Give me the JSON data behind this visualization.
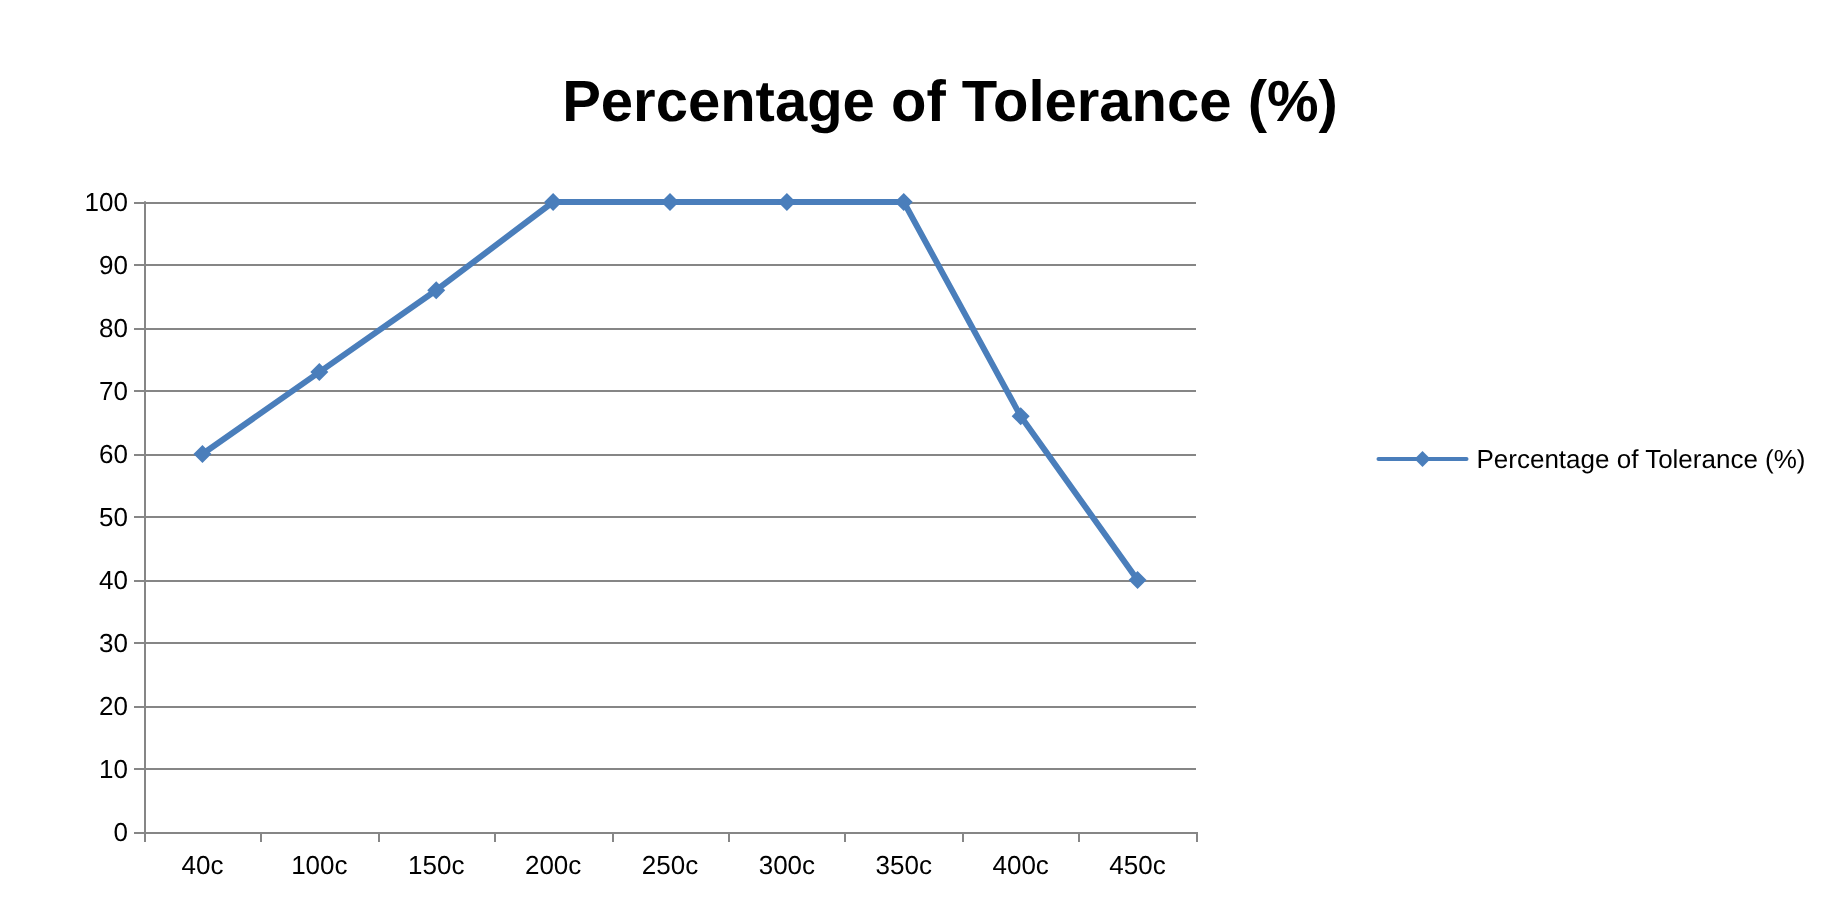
{
  "chart_data": {
    "type": "line",
    "title": "Percentage of Tolerance (%)",
    "categories": [
      "40c",
      "100c",
      "150c",
      "200c",
      "250c",
      "300c",
      "350c",
      "400c",
      "450c"
    ],
    "series": [
      {
        "name": "Percentage of Tolerance (%)",
        "color": "#4a7ebb",
        "values": [
          60,
          73,
          86,
          100,
          100,
          100,
          100,
          66,
          40
        ]
      }
    ],
    "ylim": [
      0,
      100
    ],
    "yticks": [
      0,
      10,
      20,
      30,
      40,
      50,
      60,
      70,
      80,
      90,
      100
    ],
    "grid": "y",
    "legend": "right",
    "marker": "diamond",
    "line_style": "solid"
  }
}
